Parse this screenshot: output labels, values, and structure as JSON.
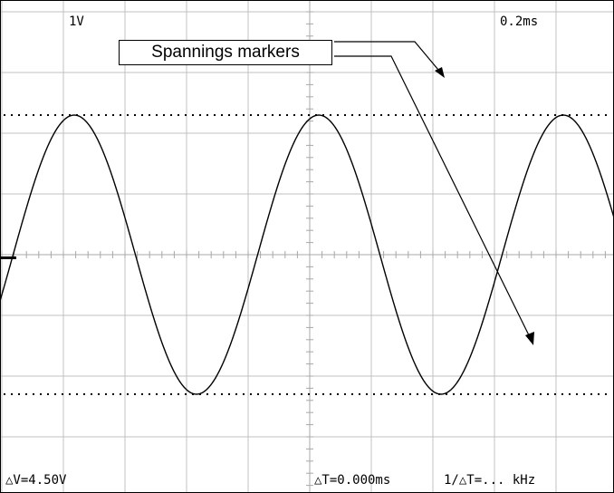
{
  "scope": {
    "volts_per_div": "1V",
    "time_per_div": "0.2ms",
    "delta_v": "△V=4.50V",
    "delta_t": "△T=0.000ms",
    "inv_delta_t": "1/△T=... kHz"
  },
  "annotation": {
    "label": "Spannings markers"
  },
  "waveform": {
    "shape": "sine",
    "periods_visible": 2.4
  },
  "colors": {
    "background": "#ffffff",
    "grid": "#c0c0c0",
    "trace": "#000000",
    "marker": "#000000"
  }
}
